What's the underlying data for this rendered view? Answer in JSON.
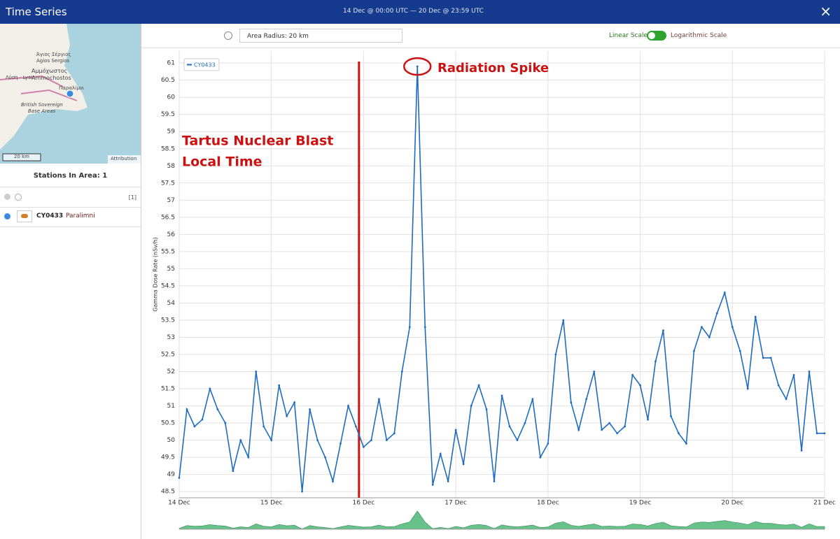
{
  "header": {
    "title": "Time Series",
    "range_from": "14 Dec @ 00:00 UTC",
    "range_sep": "—",
    "range_to": "20 Dec @ 23:59 UTC",
    "close": "×"
  },
  "map": {
    "labels": [
      "Άγιος Σέργιος",
      "Agios Sergios",
      "Αμμόχωστος",
      "Ammochostos",
      "Λύση - Lysi",
      "Παραλίμνι",
      "British Sovereign",
      "Base Areas"
    ],
    "scale": "20 km",
    "attribution": "Attribution"
  },
  "sidebar": {
    "stations_title": "Stations In Area: 1",
    "count": "[1]",
    "station_id": "CY0433",
    "station_name": "Paralimni"
  },
  "controls": {
    "radius": "Area Radius: 20 km",
    "linear": "Linear Scale",
    "log": "Logarithmic Scale"
  },
  "chart_data": {
    "type": "line",
    "y_label": "Gamma Dose Rate (nSv/h)",
    "x": [
      0,
      2,
      4,
      6,
      8,
      10,
      12,
      14,
      16,
      18,
      20,
      22,
      24,
      26,
      28,
      30,
      32,
      34,
      36,
      38,
      40,
      42,
      44,
      46,
      48,
      50,
      52,
      54,
      56,
      58,
      60,
      62,
      64,
      66,
      68,
      70,
      72,
      74,
      76,
      78,
      80,
      82,
      84,
      86,
      88,
      90,
      92,
      94,
      96,
      98,
      100,
      102,
      104,
      106,
      108,
      110,
      112,
      114,
      116,
      118,
      120,
      122,
      124,
      126,
      128,
      130,
      132,
      134,
      136,
      138,
      140,
      142,
      144,
      146,
      148,
      150,
      152,
      154,
      156,
      158,
      160,
      162,
      164,
      166,
      168
    ],
    "series": [
      {
        "name": "CY0433",
        "color": "#1f6bbf",
        "values": [
          48.9,
          50.9,
          50.4,
          50.6,
          51.5,
          50.9,
          50.5,
          49.1,
          50.0,
          49.5,
          52.0,
          50.4,
          50.0,
          51.6,
          50.7,
          51.1,
          48.5,
          50.9,
          50.0,
          49.5,
          48.8,
          49.9,
          51.0,
          50.4,
          49.8,
          50.0,
          51.2,
          50.0,
          50.2,
          52.0,
          53.3,
          60.9,
          53.3,
          48.7,
          49.6,
          48.8,
          50.3,
          49.3,
          51.0,
          51.6,
          50.9,
          48.8,
          51.3,
          50.4,
          50.0,
          50.5,
          51.2,
          49.5,
          49.9,
          52.5,
          53.5,
          51.1,
          50.3,
          51.2,
          52.0,
          50.3,
          50.5,
          50.2,
          50.4,
          51.9,
          51.6,
          50.6,
          52.3,
          53.2,
          50.7,
          50.2,
          49.9,
          52.6,
          53.3,
          53.0,
          53.7,
          54.3,
          53.3,
          52.6,
          51.5,
          53.6,
          52.4,
          52.4,
          51.6,
          51.2,
          51.9,
          49.7,
          52.0,
          50.2,
          50.2
        ]
      }
    ],
    "xlim": [
      0,
      168
    ],
    "xticks": [
      {
        "value": 0,
        "label": "14 Dec"
      },
      {
        "value": 24,
        "label": "15 Dec"
      },
      {
        "value": 48,
        "label": "16 Dec"
      },
      {
        "value": 72,
        "label": "17 Dec"
      },
      {
        "value": 96,
        "label": "18 Dec"
      },
      {
        "value": 120,
        "label": "19 Dec"
      },
      {
        "value": 144,
        "label": "20 Dec"
      },
      {
        "value": 168,
        "label": "21 Dec"
      }
    ],
    "ylim": [
      48.32,
      61.35
    ],
    "yticks": [
      48.5,
      49,
      49.5,
      50,
      50.5,
      51,
      51.5,
      52,
      52.5,
      53,
      53.5,
      54,
      54.5,
      55,
      55.5,
      56,
      56.5,
      57,
      57.5,
      58,
      58.5,
      59,
      59.5,
      60,
      60.5,
      61
    ],
    "grid": true,
    "legend": "top-left",
    "annotations": [
      {
        "text_1": "Tartus Nuclear Blast",
        "text_2": "Local Time",
        "x": 46.8,
        "color": "#cc1111"
      },
      {
        "text": "Radiation Spike",
        "x": 62,
        "y": 60.9,
        "color": "#cc1111"
      }
    ]
  }
}
